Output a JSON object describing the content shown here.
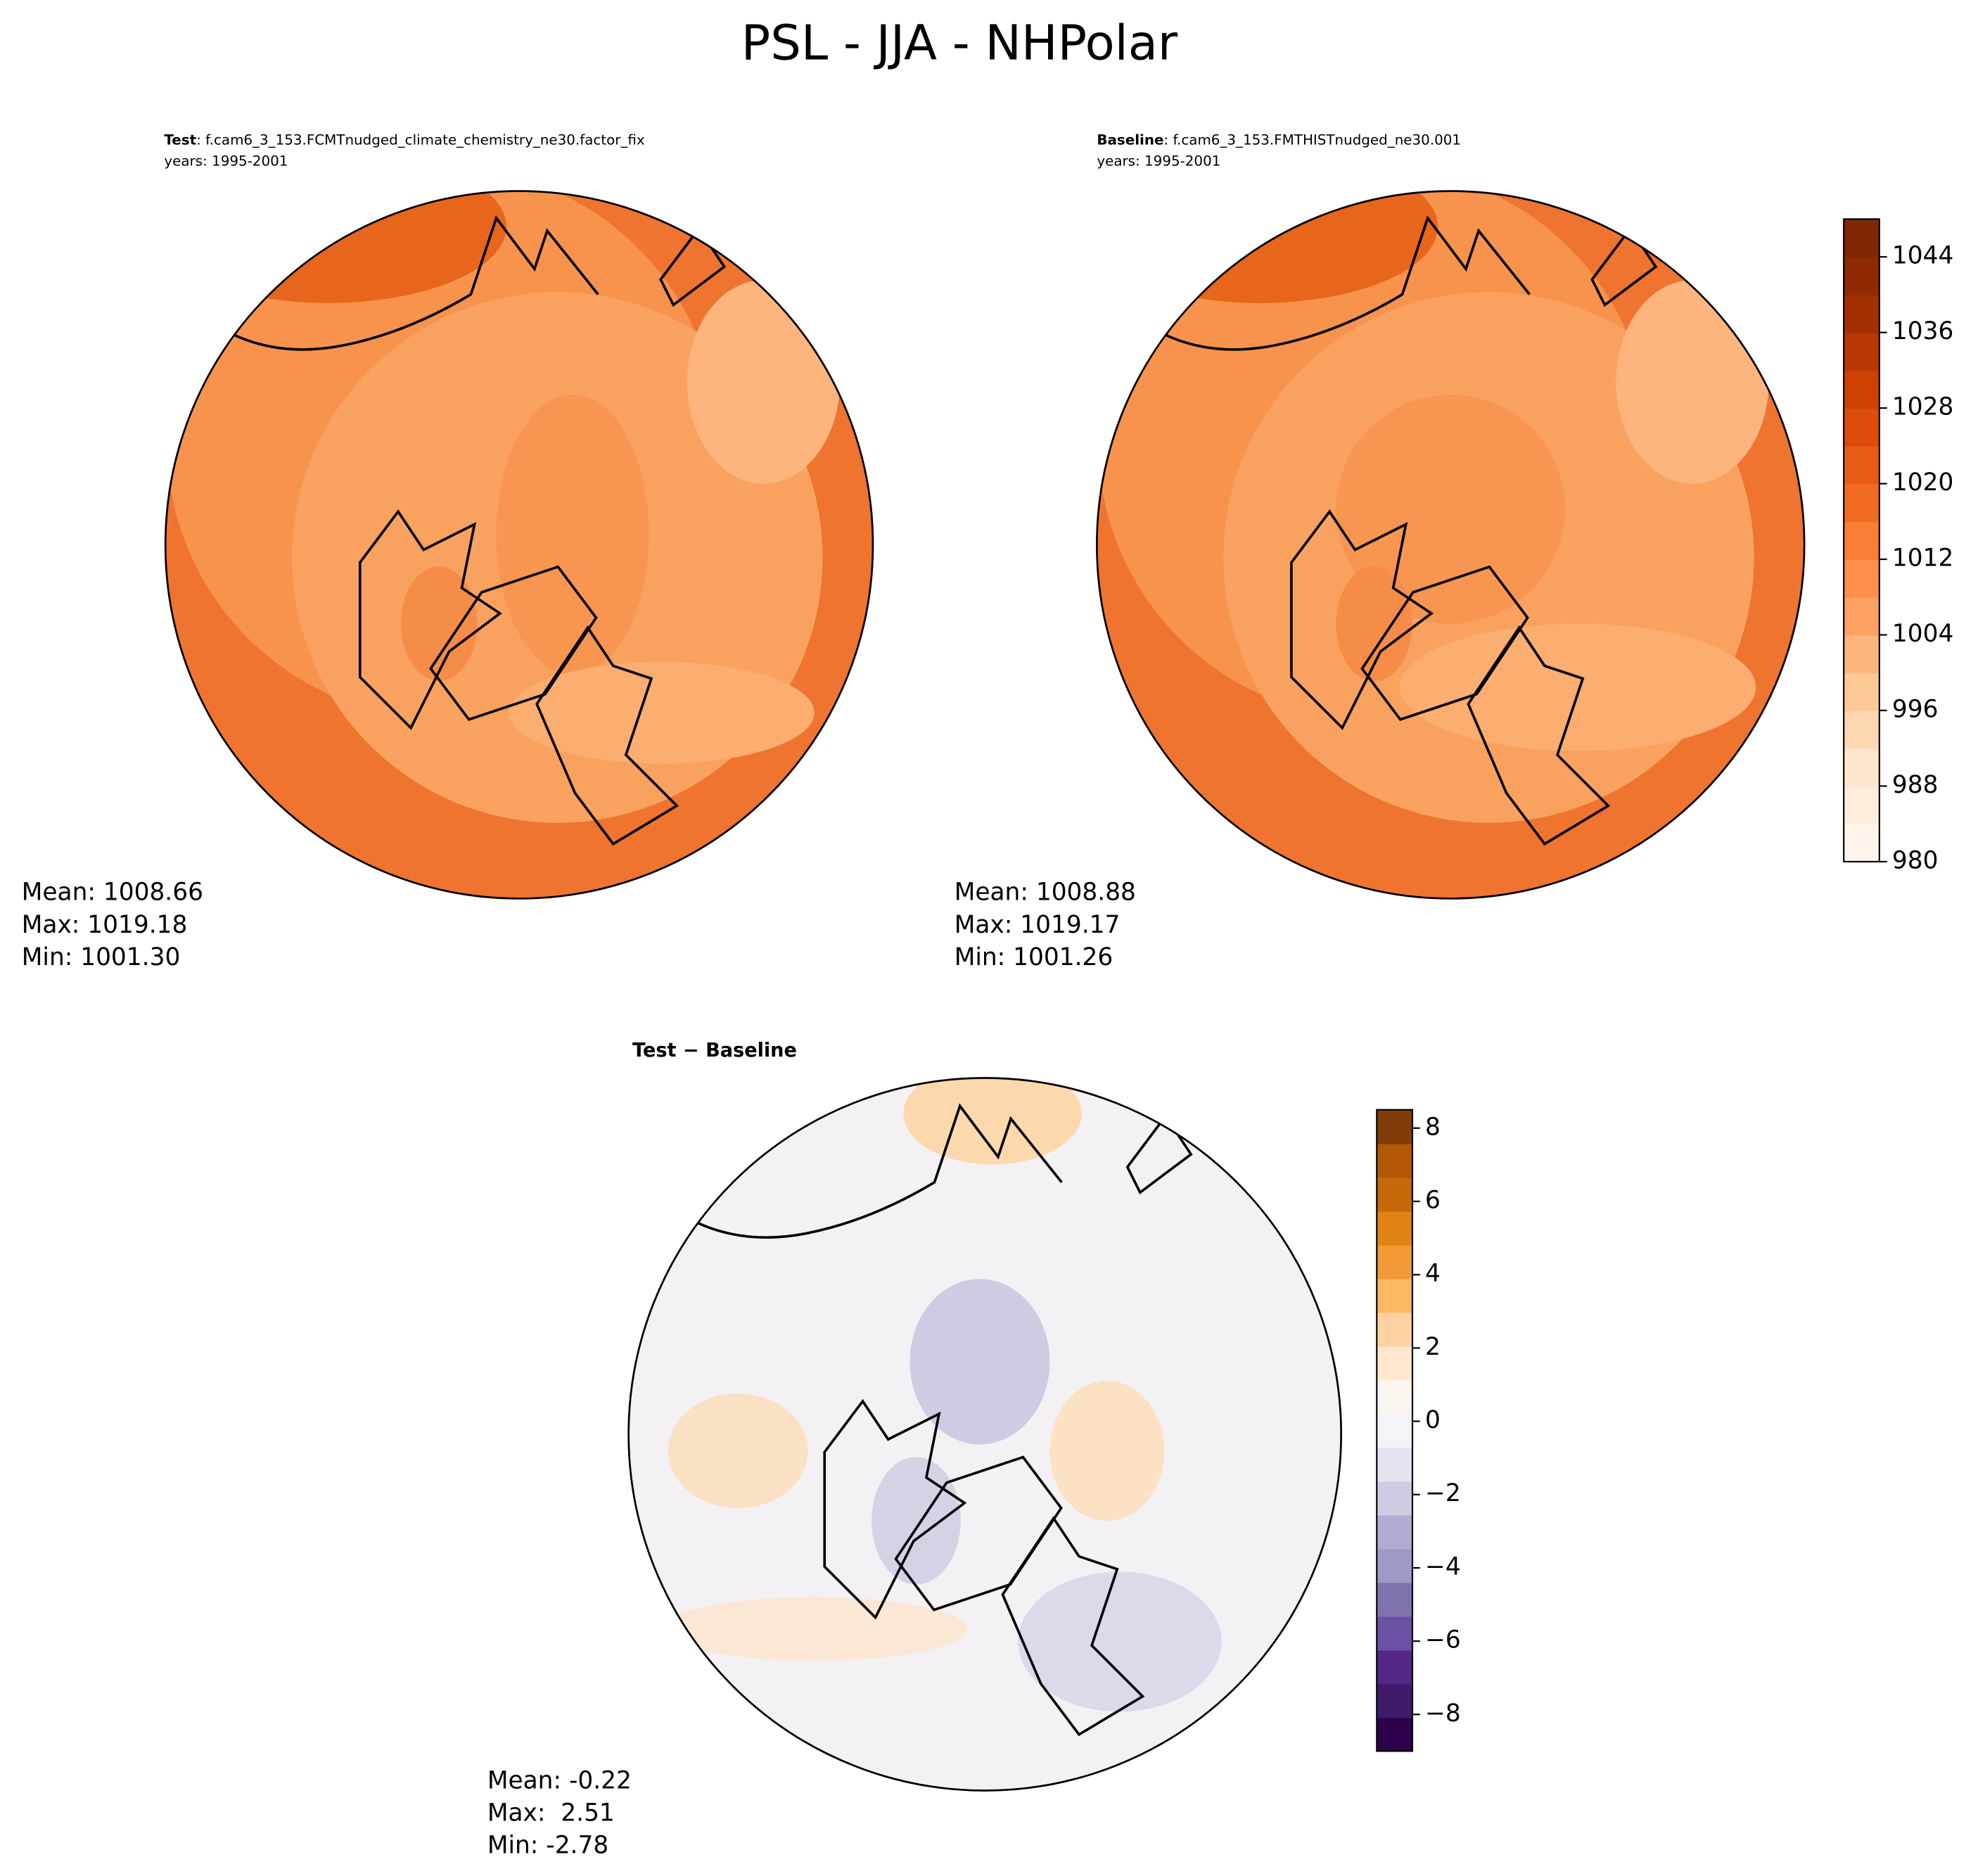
{
  "title": "PSL - JJA - NHPolar",
  "chart_data": [
    {
      "type": "contour-map",
      "label": "Test",
      "title": ": f.cam6_3_153.FCMTnudged_climate_chemistry_ne30.factor_fix",
      "subtitle": "years: 1995-2001",
      "stats": [
        "Mean: 1008.66",
        "Max: 1019.18",
        "Min: 1001.30"
      ]
    },
    {
      "type": "contour-map",
      "label": "Baseline",
      "title": ": f.cam6_3_153.FMTHISTnudged_ne30.001",
      "subtitle": "years: 1995-2001",
      "stats": [
        "Mean: 1008.88",
        "Max: 1019.17",
        "Min: 1001.26"
      ],
      "colorbar": {
        "ylim": [
          980,
          1048
        ],
        "yticks": [
          980,
          988,
          996,
          1004,
          1012,
          1020,
          1028,
          1036,
          1044
        ],
        "colors": [
          "#fff5eb",
          "#feeddc",
          "#fee6ce",
          "#fdd8b2",
          "#fdc997",
          "#fdb57d",
          "#fda263",
          "#fd8f4a",
          "#f87d35",
          "#f16b23",
          "#e95b15",
          "#dd4c0a",
          "#ce4103",
          "#b83702",
          "#a33003",
          "#8f2a03",
          "#7f2704"
        ]
      }
    },
    {
      "type": "contour-map",
      "title": "Test − Baseline",
      "stats": [
        "Mean: -0.22",
        "Max:  2.51",
        "Min: -2.78"
      ],
      "colorbar": {
        "ylim": [
          -9,
          8.5
        ],
        "yticks": [
          {
            "value": -8,
            "label": "−8"
          },
          {
            "value": -6,
            "label": "−6"
          },
          {
            "value": -4,
            "label": "−4"
          },
          {
            "value": -2,
            "label": "−2"
          },
          0,
          2,
          4,
          6,
          8
        ],
        "colors": [
          "#2d004b",
          "#3f1a6b",
          "#542788",
          "#6a51a3",
          "#8073ac",
          "#9e9ac8",
          "#b2abd2",
          "#cfcbe3",
          "#e5e3ef",
          "#f4f3f8",
          "#faf5ee",
          "#fde7cf",
          "#fdd2a0",
          "#fdb863",
          "#f29a38",
          "#e08214",
          "#c46a0b",
          "#b35806",
          "#7f3b08"
        ]
      }
    }
  ]
}
